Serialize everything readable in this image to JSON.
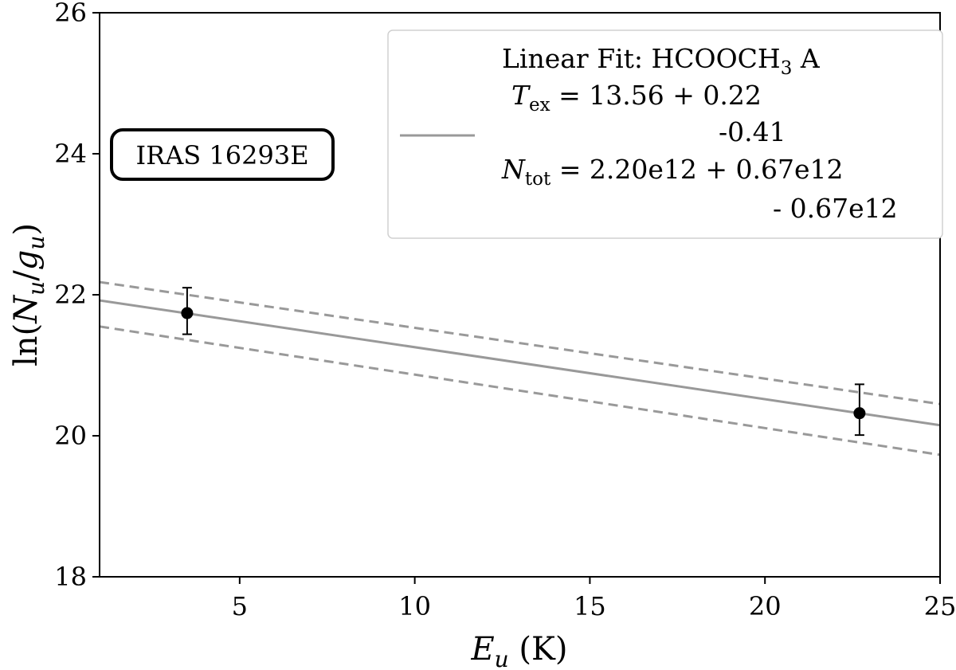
{
  "chart_data": {
    "type": "scatter",
    "xlabel": {
      "main": "E",
      "sub": "u",
      "unit": " (K)"
    },
    "ylabel": {
      "pre": "ln(",
      "n": "N",
      "nsub": "u",
      "slash": "/",
      "g": "g",
      "gsub": "u",
      "post": ")"
    },
    "xlim": [
      1,
      25
    ],
    "ylim": [
      18,
      26
    ],
    "xticks": [
      5,
      10,
      15,
      20,
      25
    ],
    "yticks": [
      18,
      20,
      22,
      24,
      26
    ],
    "grid": false,
    "annotation": "IRAS 16293E",
    "points": [
      {
        "x": 3.5,
        "y": 21.74,
        "err_low": 0.3,
        "err_high": 0.36
      },
      {
        "x": 22.7,
        "y": 20.32,
        "err_low": 0.31,
        "err_high": 0.41
      }
    ],
    "fit_line": {
      "x": [
        1,
        25
      ],
      "y": [
        21.92,
        20.15
      ],
      "color": "#999999",
      "style": "solid"
    },
    "upper_bound": {
      "x": [
        1,
        25
      ],
      "y": [
        22.18,
        20.45
      ],
      "color": "#999999",
      "style": "dashed"
    },
    "lower_bound": {
      "x": [
        1,
        25
      ],
      "y": [
        21.55,
        19.73
      ],
      "color": "#999999",
      "style": "dashed"
    },
    "legend": {
      "placement": "top-right",
      "title": "Linear Fit: HCOOCH",
      "title_sub": "3",
      "title_tail": " A",
      "tex_symbol": "T",
      "tex_sub": "ex",
      "tex_value": " = 13.56 + 0.22",
      "tex_minus": "-0.41",
      "ntot_symbol": "N",
      "ntot_sub": "tot",
      "ntot_value": " = 2.20e12  + 0.67e12",
      "ntot_minus": "- 0.67e12"
    }
  }
}
